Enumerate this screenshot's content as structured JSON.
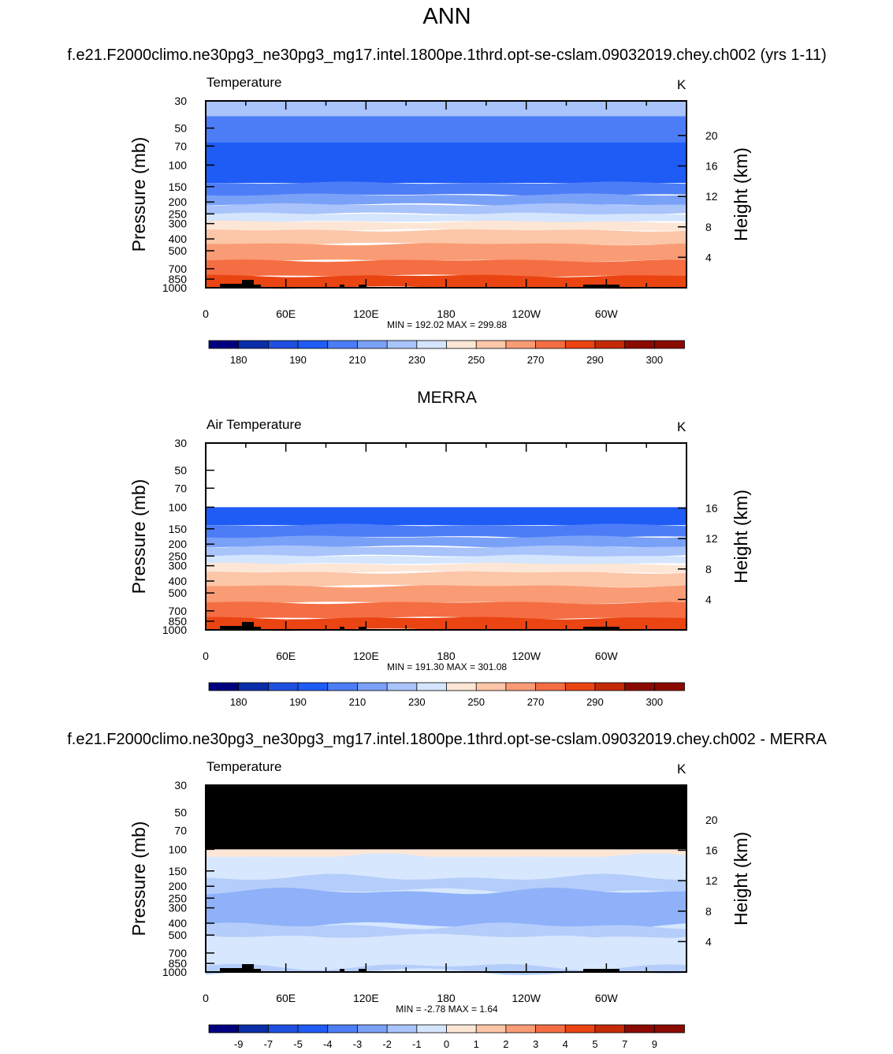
{
  "page_title": "ANN",
  "colors": {
    "t_levels": [
      "#00007f",
      "#0a2ea8",
      "#1e4fe0",
      "#1f5cf6",
      "#4d7df6",
      "#7aa1f8",
      "#a9c3fb",
      "#d4e5fd",
      "#fde6d6",
      "#fcc6a8",
      "#f99b74",
      "#f56d43",
      "#ea4413",
      "#c42a08",
      "#8b0a00"
    ],
    "diff_fill": {
      "pos1": "#fde6d6",
      "pos2": "#fbd1bb",
      "neg1": "#d7e7fd",
      "neg2": "#b5cdfb",
      "neg3": "#8eb1f9"
    },
    "missing": "#000000"
  },
  "panels": [
    {
      "header": "f.e21.F2000climo.ne30pg3_ne30pg3_mg17.intel.1800pe.1thrd.opt-se-cslam.09032019.chey.ch002 (yrs 1-11)",
      "var_label": "Temperature",
      "units": "K",
      "stats": "MIN = 192.02  MAX = 299.88",
      "y_title": "Pressure (mb)",
      "y2_title": "Height (km)",
      "y_ticks": [
        "30",
        "50",
        "70",
        "100",
        "150",
        "200",
        "250",
        "300",
        "400",
        "500",
        "700",
        "850",
        "1000"
      ],
      "y2_ticks": [
        "20",
        "16",
        "12",
        "8",
        "4"
      ],
      "x_ticks": [
        "0",
        "60E",
        "120E",
        "180",
        "120W",
        "60W"
      ],
      "colorbar_labels": [
        "180",
        "190",
        "210",
        "230",
        "250",
        "270",
        "290",
        "300"
      ]
    },
    {
      "header": "MERRA",
      "var_label": "Air Temperature",
      "units": "K",
      "stats": "MIN = 191.30  MAX = 301.08",
      "y_title": "Pressure (mb)",
      "y2_title": "Height (km)",
      "y_ticks": [
        "30",
        "50",
        "70",
        "100",
        "150",
        "200",
        "250",
        "300",
        "400",
        "500",
        "700",
        "850",
        "1000"
      ],
      "y2_ticks": [
        "16",
        "12",
        "8",
        "4"
      ],
      "x_ticks": [
        "0",
        "60E",
        "120E",
        "180",
        "120W",
        "60W"
      ],
      "colorbar_labels": [
        "180",
        "190",
        "210",
        "230",
        "250",
        "270",
        "290",
        "300"
      ]
    },
    {
      "header": "f.e21.F2000climo.ne30pg3_ne30pg3_mg17.intel.1800pe.1thrd.opt-se-cslam.09032019.chey.ch002 - MERRA",
      "var_label": "Temperature",
      "units": "K",
      "stats": "MIN =  -2.78  MAX =  1.64",
      "y_title": "Pressure (mb)",
      "y2_title": "Height (km)",
      "y_ticks": [
        "30",
        "50",
        "70",
        "100",
        "150",
        "200",
        "250",
        "300",
        "400",
        "500",
        "700",
        "850",
        "1000"
      ],
      "y2_ticks": [
        "20",
        "16",
        "12",
        "8",
        "4"
      ],
      "x_ticks": [
        "0",
        "60E",
        "120E",
        "180",
        "120W",
        "60W"
      ],
      "colorbar_labels": [
        "-9",
        "-7",
        "-5",
        "-4",
        "-3",
        "-2",
        "-1",
        "0",
        "1",
        "2",
        "3",
        "4",
        "5",
        "7",
        "9"
      ]
    }
  ],
  "chart_data": [
    {
      "type": "heatmap",
      "title": "Temperature",
      "xlabel": "",
      "ylabel": "Pressure (mb)",
      "y2label": "Height (km)",
      "x_ticks": [
        "0",
        "60E",
        "120E",
        "180",
        "120W",
        "60W"
      ],
      "y_ticks": [
        30,
        50,
        70,
        100,
        150,
        200,
        250,
        300,
        400,
        500,
        700,
        850,
        1000
      ],
      "y_scale": "log",
      "ylim": [
        1000,
        30
      ],
      "units": "K",
      "min": 192.02,
      "max": 299.88,
      "contour_levels": [
        180,
        185,
        190,
        200,
        210,
        220,
        230,
        240,
        250,
        260,
        270,
        280,
        290,
        295,
        300
      ],
      "layers_by_pressure": [
        {
          "p_top": 30,
          "p_bottom": 40,
          "level_index": 6
        },
        {
          "p_top": 40,
          "p_bottom": 65,
          "level_index": 4
        },
        {
          "p_top": 65,
          "p_bottom": 140,
          "level_index": 3
        },
        {
          "p_top": 140,
          "p_bottom": 175,
          "level_index": 4
        },
        {
          "p_top": 175,
          "p_bottom": 210,
          "level_index": 5
        },
        {
          "p_top": 210,
          "p_bottom": 250,
          "level_index": 6
        },
        {
          "p_top": 250,
          "p_bottom": 290,
          "level_index": 7
        },
        {
          "p_top": 290,
          "p_bottom": 340,
          "level_index": 8
        },
        {
          "p_top": 340,
          "p_bottom": 440,
          "level_index": 9
        },
        {
          "p_top": 440,
          "p_bottom": 600,
          "level_index": 10
        },
        {
          "p_top": 600,
          "p_bottom": 800,
          "level_index": 11
        },
        {
          "p_top": 800,
          "p_bottom": 1000,
          "level_index": 12
        }
      ]
    },
    {
      "type": "heatmap",
      "title": "Air Temperature",
      "xlabel": "",
      "ylabel": "Pressure (mb)",
      "y2label": "Height (km)",
      "x_ticks": [
        "0",
        "60E",
        "120E",
        "180",
        "120W",
        "60W"
      ],
      "y_ticks": [
        30,
        50,
        70,
        100,
        150,
        200,
        250,
        300,
        400,
        500,
        700,
        850,
        1000
      ],
      "y_scale": "log",
      "ylim": [
        1000,
        30
      ],
      "units": "K",
      "min": 191.3,
      "max": 301.08,
      "data_top_pressure": 100,
      "layers_by_pressure": [
        {
          "p_top": 100,
          "p_bottom": 140,
          "level_index": 3
        },
        {
          "p_top": 140,
          "p_bottom": 175,
          "level_index": 4
        },
        {
          "p_top": 175,
          "p_bottom": 210,
          "level_index": 5
        },
        {
          "p_top": 210,
          "p_bottom": 250,
          "level_index": 6
        },
        {
          "p_top": 250,
          "p_bottom": 290,
          "level_index": 7
        },
        {
          "p_top": 290,
          "p_bottom": 340,
          "level_index": 8
        },
        {
          "p_top": 340,
          "p_bottom": 440,
          "level_index": 9
        },
        {
          "p_top": 440,
          "p_bottom": 600,
          "level_index": 10
        },
        {
          "p_top": 600,
          "p_bottom": 800,
          "level_index": 11
        },
        {
          "p_top": 800,
          "p_bottom": 1000,
          "level_index": 12
        }
      ]
    },
    {
      "type": "heatmap",
      "title": "Temperature",
      "xlabel": "",
      "ylabel": "Pressure (mb)",
      "y2label": "Height (km)",
      "x_ticks": [
        "0",
        "60E",
        "120E",
        "180",
        "120W",
        "60W"
      ],
      "y_ticks": [
        30,
        50,
        70,
        100,
        150,
        200,
        250,
        300,
        400,
        500,
        700,
        850,
        1000
      ],
      "y_scale": "log",
      "ylim": [
        1000,
        30
      ],
      "units": "K",
      "min": -2.78,
      "max": 1.64,
      "missing_above_pressure": 100,
      "contour_levels": [
        -9,
        -7,
        -5,
        -4,
        -3,
        -2,
        -1,
        0,
        1,
        2,
        3,
        4,
        5,
        7,
        9
      ],
      "layers_by_pressure": [
        {
          "p_top": 100,
          "p_bottom": 115,
          "range": "0 to 1"
        },
        {
          "p_top": 115,
          "p_bottom": 170,
          "range": "-1 to 0"
        },
        {
          "p_top": 170,
          "p_bottom": 220,
          "range": "-2 to -1"
        },
        {
          "p_top": 220,
          "p_bottom": 420,
          "range": "-3 to -2"
        },
        {
          "p_top": 420,
          "p_bottom": 520,
          "range": "-2 to -1"
        },
        {
          "p_top": 520,
          "p_bottom": 900,
          "range": "-1 to 0"
        },
        {
          "p_top": 900,
          "p_bottom": 1000,
          "range": "-2 to -1"
        }
      ]
    }
  ]
}
